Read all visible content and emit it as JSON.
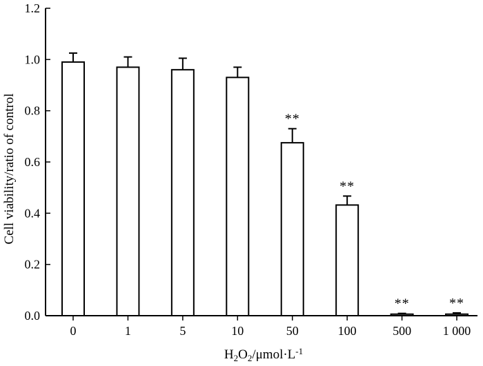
{
  "chart_data": {
    "type": "bar",
    "title": "",
    "categories": [
      "0",
      "1",
      "5",
      "10",
      "50",
      "100",
      "500",
      "1 000"
    ],
    "values": [
      0.99,
      0.97,
      0.96,
      0.93,
      0.675,
      0.432,
      0.006,
      0.006
    ],
    "errors": [
      0.035,
      0.04,
      0.045,
      0.04,
      0.055,
      0.035,
      0.003,
      0.005
    ],
    "significance": [
      "",
      "",
      "",
      "",
      "**",
      "**",
      "**",
      "**"
    ],
    "xlabel": {
      "parts": [
        {
          "text": "H",
          "sub": false,
          "sup": false
        },
        {
          "text": "2",
          "sub": true,
          "sup": false
        },
        {
          "text": "O",
          "sub": false,
          "sup": false
        },
        {
          "text": "2",
          "sub": true,
          "sup": false
        },
        {
          "text": "/μmol·L",
          "sub": false,
          "sup": false
        },
        {
          "text": "-1",
          "sub": false,
          "sup": true
        }
      ]
    },
    "ylabel": "Cell viability/ratio of control",
    "ylim": [
      0,
      1.2
    ],
    "yticks": [
      "0.0",
      "0.2",
      "0.4",
      "0.6",
      "0.8",
      "1.0",
      "1.2"
    ],
    "bar_color": "#ffffff",
    "grid": false
  }
}
